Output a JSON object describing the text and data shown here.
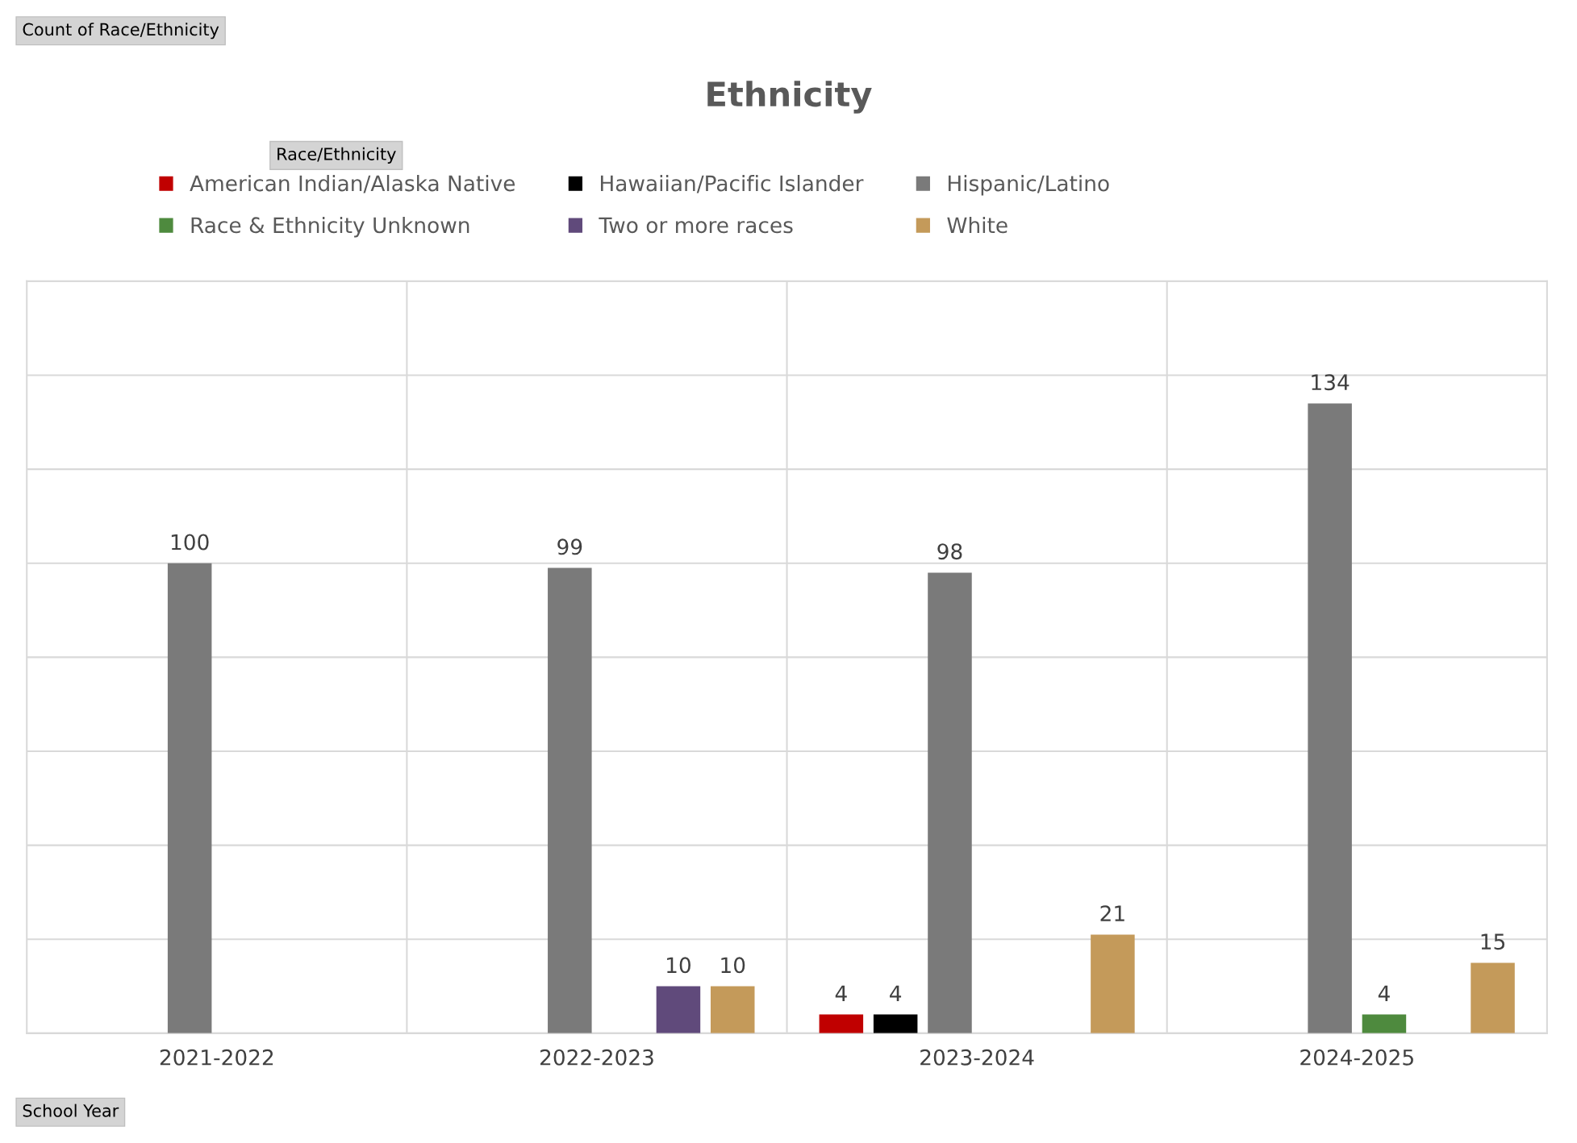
{
  "chart_data": {
    "type": "bar",
    "title": "Ethnicity",
    "annotations": [
      "Count of Race/Ethnicity"
    ],
    "xlabel": "School Year",
    "legend_title": "Race/Ethnicity",
    "categories": [
      "2021-2022",
      "2022-2023",
      "2023-2024",
      "2024-2025"
    ],
    "series": [
      {
        "name": "American Indian/Alaska Native",
        "color": "#c00000",
        "values": [
          null,
          null,
          4,
          null
        ]
      },
      {
        "name": "Hawaiian/Pacific Islander",
        "color": "#000000",
        "values": [
          null,
          null,
          4,
          null
        ]
      },
      {
        "name": "Hispanic/Latino",
        "color": "#7a7a7a",
        "values": [
          100,
          99,
          98,
          134
        ]
      },
      {
        "name": "Race & Ethnicity Unknown",
        "color": "#4e8a3e",
        "values": [
          null,
          null,
          null,
          4
        ]
      },
      {
        "name": "Two or more races",
        "color": "#604a7b",
        "values": [
          null,
          10,
          null,
          null
        ]
      },
      {
        "name": "White",
        "color": "#c49a5a",
        "values": [
          null,
          10,
          21,
          15
        ]
      }
    ],
    "ylim": [
      0,
      160
    ],
    "yticks": [
      {
        "value": 0,
        "label": null
      },
      {
        "value": 20,
        "label": null
      },
      {
        "value": 40,
        "label": null
      },
      {
        "value": 60,
        "label": null
      },
      {
        "value": 80,
        "label": null
      },
      {
        "value": 100,
        "label": null
      },
      {
        "value": 120,
        "label": null
      },
      {
        "value": 140,
        "label": null
      },
      {
        "value": 160,
        "label": null
      }
    ],
    "tick_labels": "x",
    "grid": true,
    "legend": "top",
    "data_labels": true
  }
}
